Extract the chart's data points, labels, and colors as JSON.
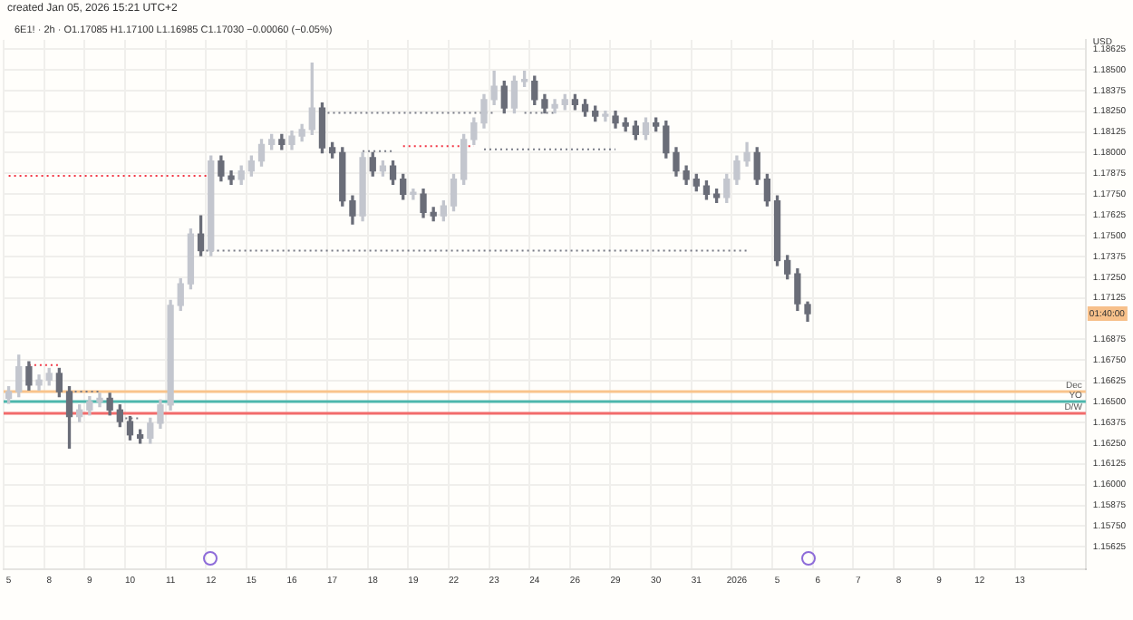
{
  "chart_data": {
    "type": "candlestick",
    "title": "created Jan 05, 2026 15:21 UTC+2",
    "subtitle": "6E1! · 2h · O1.17085 H1.17100 L1.16985 C1.17030 −0.00060 (−0.05%)",
    "ylabel": "USD",
    "categories": [
      "5",
      null,
      null,
      null,
      "8",
      null,
      null,
      null,
      "9",
      null,
      null,
      null,
      "10",
      null,
      null,
      null,
      "11",
      null,
      null,
      null,
      "12",
      null,
      null,
      null,
      "15",
      null,
      null,
      null,
      "16",
      null,
      null,
      null,
      "17",
      null,
      null,
      null,
      "18",
      null,
      null,
      null,
      "19",
      null,
      null,
      null,
      "22",
      null,
      null,
      null,
      "23",
      null,
      null,
      null,
      "24",
      null,
      null,
      null,
      "26",
      null,
      null,
      null,
      "29",
      null,
      null,
      null,
      "30",
      null,
      null,
      null,
      "31",
      null,
      null,
      null,
      "2026",
      null,
      null,
      null,
      "5",
      null,
      null,
      null,
      "6",
      null,
      null,
      null,
      "7",
      null,
      null,
      null,
      "8",
      null,
      null,
      null,
      "9",
      null,
      null,
      null,
      "12",
      null,
      null,
      null,
      "13",
      null,
      null,
      null,
      null,
      null,
      null
    ],
    "colors": [
      "#c3c6ce",
      "#c3c6ce",
      "#6a6d78",
      "#c3c6ce",
      "#c3c6ce",
      "#6a6d78",
      "#6a6d78",
      "#c3c6ce",
      "#c3c6ce",
      "#c3c6ce",
      "#6a6d78",
      "#6a6d78",
      "#6a6d78",
      "#6a6d78",
      "#c3c6ce",
      "#c3c6ce",
      "#c3c6ce",
      "#c3c6ce",
      "#c3c6ce",
      "#6a6d78",
      "#c3c6ce",
      "#6a6d78",
      "#6a6d78",
      "#c3c6ce",
      "#c3c6ce",
      "#c3c6ce",
      "#c3c6ce",
      "#6a6d78",
      "#c3c6ce",
      "#c3c6ce",
      "#c3c6ce",
      "#6a6d78",
      "#6a6d78",
      "#6a6d78",
      "#6a6d78",
      "#c3c6ce",
      "#6a6d78",
      "#c3c6ce",
      "#6a6d78",
      "#6a6d78",
      "#c3c6ce",
      "#6a6d78",
      "#6a6d78",
      "#c3c6ce",
      "#c3c6ce",
      "#c3c6ce",
      "#c3c6ce",
      "#c3c6ce",
      "#c3c6ce",
      "#6a6d78",
      "#c3c6ce",
      "#c3c6ce",
      "#6a6d78",
      "#6a6d78",
      "#c3c6ce",
      "#c3c6ce",
      "#6a6d78",
      "#6a6d78",
      "#6a6d78",
      "#c3c6ce",
      "#6a6d78",
      "#6a6d78",
      "#6a6d78",
      "#c3c6ce",
      "#6a6d78",
      "#6a6d78",
      "#6a6d78",
      "#6a6d78",
      "#6a6d78",
      "#6a6d78",
      "#6a6d78",
      "#c3c6ce",
      "#c3c6ce",
      "#c3c6ce",
      "#6a6d78",
      "#6a6d78",
      "#6a6d78",
      "#6a6d78",
      "#6a6d78",
      "#6a6d78",
      null,
      null,
      null,
      null,
      null,
      null,
      null,
      null,
      null,
      null,
      null,
      null,
      null,
      null,
      null,
      null,
      null,
      null,
      null,
      null,
      null,
      null,
      null,
      null,
      null,
      null,
      null
    ],
    "ohlc": [
      [
        1.1652,
        1.1659,
        1.1649,
        1.1656
      ],
      [
        1.1656,
        1.1678,
        1.1653,
        1.1671
      ],
      [
        1.1671,
        1.1674,
        1.1657,
        1.166
      ],
      [
        1.166,
        1.1666,
        1.1657,
        1.1663
      ],
      [
        1.1663,
        1.167,
        1.166,
        1.1667
      ],
      [
        1.1667,
        1.167,
        1.1653,
        1.1656
      ],
      [
        1.1656,
        1.1659,
        1.1622,
        1.1641
      ],
      [
        1.1641,
        1.1648,
        1.1638,
        1.1645
      ],
      [
        1.1645,
        1.1653,
        1.1642,
        1.165
      ],
      [
        1.165,
        1.1655,
        1.1647,
        1.1652
      ],
      [
        1.1652,
        1.1655,
        1.1642,
        1.1645
      ],
      [
        1.1645,
        1.1648,
        1.1635,
        1.1638
      ],
      [
        1.1638,
        1.1641,
        1.1627,
        1.163
      ],
      [
        1.163,
        1.1633,
        1.1625,
        1.1628
      ],
      [
        1.1628,
        1.164,
        1.1625,
        1.1637
      ],
      [
        1.1637,
        1.1651,
        1.1634,
        1.1648
      ],
      [
        1.1648,
        1.1711,
        1.1645,
        1.1708
      ],
      [
        1.1708,
        1.1724,
        1.1705,
        1.1721
      ],
      [
        1.1721,
        1.1754,
        1.1718,
        1.1751
      ],
      [
        1.1751,
        1.1762,
        1.1738,
        1.1741
      ],
      [
        1.1741,
        1.1798,
        1.1738,
        1.1795
      ],
      [
        1.1795,
        1.1798,
        1.1783,
        1.1786
      ],
      [
        1.1786,
        1.1789,
        1.1781,
        1.1784
      ],
      [
        1.1784,
        1.1792,
        1.1781,
        1.1789
      ],
      [
        1.1789,
        1.1798,
        1.1786,
        1.1795
      ],
      [
        1.1795,
        1.1808,
        1.1792,
        1.1805
      ],
      [
        1.1805,
        1.1811,
        1.1802,
        1.1808
      ],
      [
        1.1808,
        1.1811,
        1.1802,
        1.1805
      ],
      [
        1.1805,
        1.1813,
        1.1802,
        1.181
      ],
      [
        1.181,
        1.1817,
        1.1807,
        1.1814
      ],
      [
        1.1814,
        1.1854,
        1.1811,
        1.1827
      ],
      [
        1.1827,
        1.183,
        1.18,
        1.1803
      ],
      [
        1.1803,
        1.1806,
        1.1797,
        1.18
      ],
      [
        1.18,
        1.1803,
        1.1768,
        1.1771
      ],
      [
        1.1771,
        1.1774,
        1.1757,
        1.1762
      ],
      [
        1.1762,
        1.18,
        1.1759,
        1.1797
      ],
      [
        1.1797,
        1.18,
        1.1786,
        1.1789
      ],
      [
        1.1789,
        1.1795,
        1.1786,
        1.1792
      ],
      [
        1.1792,
        1.1795,
        1.1781,
        1.1784
      ],
      [
        1.1784,
        1.1787,
        1.1772,
        1.1775
      ],
      [
        1.1775,
        1.1778,
        1.1772,
        1.1775
      ],
      [
        1.1775,
        1.1778,
        1.1761,
        1.1764
      ],
      [
        1.1764,
        1.1767,
        1.1759,
        1.1762
      ],
      [
        1.1762,
        1.1771,
        1.1759,
        1.1768
      ],
      [
        1.1768,
        1.1787,
        1.1765,
        1.1784
      ],
      [
        1.1784,
        1.1811,
        1.1781,
        1.1808
      ],
      [
        1.1808,
        1.1821,
        1.1805,
        1.1818
      ],
      [
        1.1818,
        1.1835,
        1.1815,
        1.1832
      ],
      [
        1.1832,
        1.1849,
        1.1829,
        1.184
      ],
      [
        1.184,
        1.1843,
        1.1824,
        1.1827
      ],
      [
        1.1827,
        1.1846,
        1.1824,
        1.1843
      ],
      [
        1.1843,
        1.1849,
        1.184,
        1.1843
      ],
      [
        1.1843,
        1.1846,
        1.1829,
        1.1832
      ],
      [
        1.1832,
        1.1835,
        1.1824,
        1.1827
      ],
      [
        1.1827,
        1.1832,
        1.1824,
        1.1829
      ],
      [
        1.1829,
        1.1835,
        1.1826,
        1.1832
      ],
      [
        1.1832,
        1.1835,
        1.1826,
        1.1829
      ],
      [
        1.1829,
        1.1832,
        1.1822,
        1.1825
      ],
      [
        1.1825,
        1.1828,
        1.1819,
        1.1822
      ],
      [
        1.1822,
        1.1825,
        1.1819,
        1.1822
      ],
      [
        1.1822,
        1.1825,
        1.1815,
        1.1818
      ],
      [
        1.1818,
        1.1821,
        1.1813,
        1.1816
      ],
      [
        1.1816,
        1.1819,
        1.1808,
        1.1811
      ],
      [
        1.1811,
        1.1821,
        1.1808,
        1.1818
      ],
      [
        1.1818,
        1.1821,
        1.1813,
        1.1816
      ],
      [
        1.1816,
        1.1819,
        1.1797,
        1.18
      ],
      [
        1.18,
        1.1803,
        1.1786,
        1.1789
      ],
      [
        1.1789,
        1.1792,
        1.1781,
        1.1784
      ],
      [
        1.1784,
        1.1787,
        1.1777,
        1.178
      ],
      [
        1.178,
        1.1783,
        1.1772,
        1.1775
      ],
      [
        1.1775,
        1.1778,
        1.177,
        1.1773
      ],
      [
        1.1773,
        1.1787,
        1.177,
        1.1784
      ],
      [
        1.1784,
        1.1798,
        1.1781,
        1.1795
      ],
      [
        1.1795,
        1.1806,
        1.1792,
        1.18
      ],
      [
        1.18,
        1.1803,
        1.1781,
        1.1784
      ],
      [
        1.1784,
        1.1787,
        1.1768,
        1.1771
      ],
      [
        1.1771,
        1.1774,
        1.1732,
        1.1735
      ],
      [
        1.1735,
        1.1738,
        1.1724,
        1.1727
      ],
      [
        1.1727,
        1.173,
        1.1705,
        1.1709
      ],
      [
        1.17085,
        1.171,
        1.16985,
        1.1703
      ],
      null,
      null,
      null,
      null,
      null,
      null,
      null,
      null,
      null,
      null,
      null,
      null,
      null,
      null,
      null,
      null,
      null,
      null,
      null,
      null,
      null,
      null,
      null,
      null,
      null,
      null,
      null
    ],
    "series": [
      {
        "type": "line",
        "line_style": "dotted",
        "color": "#f23645",
        "values": [
          1.1786,
          null,
          null,
          null,
          null,
          null,
          null,
          null,
          null,
          null,
          null,
          null,
          null,
          null,
          null,
          null,
          null,
          null,
          null,
          null,
          1.1786,
          null,
          null,
          null,
          null,
          null,
          null,
          null,
          null,
          null,
          null,
          null,
          null,
          null,
          null,
          null,
          null,
          null,
          null,
          null,
          null,
          null,
          null,
          null,
          null,
          null,
          null,
          null,
          null,
          null,
          null,
          null,
          null,
          null,
          null,
          null,
          null,
          null,
          null,
          null,
          null,
          null,
          null,
          null,
          null,
          null,
          null,
          null,
          null,
          null,
          null,
          null,
          null,
          null,
          null,
          null,
          null,
          null,
          null,
          null,
          null,
          null,
          null,
          null,
          null,
          null,
          null,
          null,
          null,
          null,
          null,
          null,
          null,
          null,
          null,
          null,
          null,
          null,
          null,
          null,
          null,
          null,
          null,
          null,
          null,
          null,
          null
        ]
      },
      {
        "type": "line",
        "line_style": "dotted",
        "color": "#f23645",
        "values": [
          null,
          null,
          1.1672,
          null,
          null,
          1.1672,
          null,
          null,
          null,
          null,
          null,
          null,
          null,
          null,
          null,
          null,
          null,
          null,
          null,
          null,
          null,
          null,
          null,
          null,
          null,
          null,
          null,
          null,
          null,
          null,
          null,
          null,
          null,
          null,
          null,
          null,
          null,
          null,
          null,
          null,
          null,
          null,
          null,
          null,
          null,
          null,
          null,
          null,
          null,
          null,
          null,
          null,
          null,
          null,
          null,
          null,
          null,
          null,
          null,
          null,
          null,
          null,
          null,
          null,
          null,
          null,
          null,
          null,
          null,
          null,
          null,
          null,
          null,
          null,
          null,
          null,
          null,
          null,
          null,
          null,
          null,
          null,
          null,
          null,
          null,
          null,
          null,
          null,
          null,
          null,
          null,
          null,
          null,
          null,
          null,
          null,
          null,
          null,
          null,
          null,
          null,
          null,
          null,
          null,
          null,
          null,
          null
        ]
      },
      {
        "type": "line",
        "line_style": "dotted",
        "color": "#787b86",
        "values": [
          null,
          null,
          null,
          null,
          null,
          null,
          1.1656,
          null,
          null,
          1.1656,
          null,
          null,
          null,
          null,
          null,
          null,
          null,
          null,
          null,
          null,
          null,
          null,
          null,
          null,
          null,
          null,
          null,
          null,
          null,
          null,
          null,
          null,
          null,
          null,
          null,
          null,
          null,
          null,
          null,
          null,
          null,
          null,
          null,
          null,
          null,
          null,
          null,
          null,
          null,
          null,
          null,
          null,
          null,
          null,
          null,
          null,
          null,
          null,
          null,
          null,
          null,
          null,
          null,
          null,
          null,
          null,
          null,
          null,
          null,
          null,
          null,
          null,
          null,
          null,
          null,
          null,
          null,
          null,
          null,
          null,
          null,
          null,
          null,
          null,
          null,
          null,
          null,
          null,
          null,
          null,
          null,
          null,
          null,
          null,
          null,
          null,
          null,
          null,
          null,
          null,
          null,
          null,
          null,
          null,
          null,
          null,
          null
        ]
      },
      {
        "type": "line",
        "line_style": "dotted",
        "color": "#787b86",
        "values": [
          null,
          null,
          null,
          null,
          null,
          null,
          null,
          null,
          null,
          null,
          null,
          1.164,
          null,
          1.164,
          null,
          null,
          null,
          null,
          null,
          null,
          null,
          null,
          null,
          null,
          null,
          null,
          null,
          null,
          null,
          null,
          null,
          null,
          null,
          null,
          null,
          null,
          null,
          null,
          null,
          null,
          null,
          null,
          null,
          null,
          null,
          null,
          null,
          null,
          null,
          null,
          null,
          null,
          null,
          null,
          null,
          null,
          null,
          null,
          null,
          null,
          null,
          null,
          null,
          null,
          null,
          null,
          null,
          null,
          null,
          null,
          null,
          null,
          null,
          null,
          null,
          null,
          null,
          null,
          null,
          null,
          null,
          null,
          null,
          null,
          null,
          null,
          null,
          null,
          null,
          null,
          null,
          null,
          null,
          null,
          null,
          null,
          null,
          null,
          null,
          null,
          null,
          null,
          null,
          null,
          null,
          null,
          null
        ]
      },
      {
        "type": "line",
        "line_style": "dotted",
        "color": "#787b86",
        "values": [
          null,
          null,
          null,
          null,
          null,
          null,
          null,
          null,
          null,
          null,
          null,
          null,
          null,
          null,
          null,
          null,
          null,
          null,
          null,
          1.1741,
          null,
          null,
          null,
          null,
          null,
          null,
          null,
          null,
          null,
          null,
          null,
          null,
          null,
          null,
          null,
          null,
          null,
          null,
          null,
          null,
          null,
          null,
          null,
          null,
          null,
          null,
          null,
          null,
          null,
          null,
          null,
          null,
          null,
          null,
          null,
          null,
          null,
          null,
          null,
          null,
          null,
          null,
          null,
          null,
          null,
          null,
          null,
          null,
          null,
          null,
          null,
          null,
          null,
          1.1741,
          null,
          null,
          null,
          null,
          null,
          null,
          null,
          null,
          null,
          null,
          null,
          null,
          null,
          null,
          null,
          null,
          null,
          null,
          null,
          null,
          null,
          null,
          null,
          null,
          null,
          null,
          null,
          null,
          null,
          null,
          null,
          null,
          null
        ]
      },
      {
        "type": "line",
        "line_style": "dotted",
        "color": "#787b86",
        "values": [
          null,
          null,
          null,
          null,
          null,
          null,
          null,
          null,
          null,
          null,
          null,
          null,
          null,
          null,
          null,
          null,
          null,
          null,
          null,
          null,
          null,
          null,
          null,
          null,
          null,
          null,
          null,
          null,
          null,
          null,
          null,
          1.1824,
          null,
          null,
          null,
          null,
          null,
          null,
          null,
          null,
          null,
          null,
          null,
          null,
          null,
          null,
          null,
          null,
          1.1824,
          null,
          null,
          null,
          null,
          null,
          null,
          null,
          null,
          null,
          null,
          null,
          null,
          null,
          null,
          null,
          null,
          null,
          null,
          null,
          null,
          null,
          null,
          null,
          null,
          null,
          null,
          null,
          null,
          null,
          null,
          null,
          null,
          null,
          null,
          null,
          null,
          null,
          null,
          null,
          null,
          null,
          null,
          null,
          null,
          null,
          null,
          null,
          null,
          null,
          null,
          null,
          null,
          null,
          null,
          null,
          null,
          null,
          null
        ]
      },
      {
        "type": "line",
        "line_style": "dotted",
        "color": "#787b86",
        "values": [
          null,
          null,
          null,
          null,
          null,
          null,
          null,
          null,
          null,
          null,
          null,
          null,
          null,
          null,
          null,
          null,
          null,
          null,
          null,
          null,
          null,
          null,
          null,
          null,
          null,
          null,
          null,
          null,
          null,
          null,
          null,
          null,
          null,
          null,
          null,
          1.1801,
          null,
          null,
          1.1801,
          null,
          null,
          null,
          null,
          null,
          null,
          null,
          null,
          null,
          null,
          null,
          null,
          null,
          null,
          null,
          null,
          null,
          null,
          null,
          null,
          null,
          null,
          null,
          null,
          null,
          null,
          null,
          null,
          null,
          null,
          null,
          null,
          null,
          null,
          null,
          null,
          null,
          null,
          null,
          null,
          null,
          null,
          null,
          null,
          null,
          null,
          null,
          null,
          null,
          null,
          null,
          null,
          null,
          null,
          null,
          null,
          null,
          null,
          null,
          null,
          null,
          null,
          null,
          null,
          null,
          null,
          null,
          null
        ]
      },
      {
        "type": "line",
        "line_style": "dotted",
        "color": "#f23645",
        "values": [
          null,
          null,
          null,
          null,
          null,
          null,
          null,
          null,
          null,
          null,
          null,
          null,
          null,
          null,
          null,
          null,
          null,
          null,
          null,
          null,
          null,
          null,
          null,
          null,
          null,
          null,
          null,
          null,
          null,
          null,
          null,
          null,
          null,
          null,
          null,
          null,
          null,
          null,
          null,
          1.1804,
          null,
          null,
          null,
          null,
          null,
          null,
          1.1804,
          null,
          null,
          null,
          null,
          null,
          null,
          null,
          null,
          null,
          null,
          null,
          null,
          null,
          null,
          null,
          null,
          null,
          null,
          null,
          null,
          null,
          null,
          null,
          null,
          null,
          null,
          null,
          null,
          null,
          null,
          null,
          null,
          null,
          null,
          null,
          null,
          null,
          null,
          null,
          null,
          null,
          null,
          null,
          null,
          null,
          null,
          null,
          null,
          null,
          null,
          null,
          null,
          null,
          null,
          null,
          null,
          null,
          null,
          null,
          null
        ]
      },
      {
        "type": "line",
        "line_style": "dotted",
        "color": "#787b86",
        "values": [
          null,
          null,
          null,
          null,
          null,
          null,
          null,
          null,
          null,
          null,
          null,
          null,
          null,
          null,
          null,
          null,
          null,
          null,
          null,
          null,
          null,
          null,
          null,
          null,
          null,
          null,
          null,
          null,
          null,
          null,
          null,
          null,
          null,
          null,
          null,
          null,
          null,
          null,
          null,
          null,
          null,
          null,
          null,
          null,
          null,
          null,
          null,
          1.1802,
          null,
          null,
          null,
          null,
          null,
          null,
          null,
          null,
          null,
          null,
          null,
          null,
          1.1802,
          null,
          null,
          null,
          null,
          null,
          null,
          null,
          null,
          null,
          null,
          null,
          null,
          null,
          null,
          null,
          null,
          null,
          null,
          null,
          null,
          null,
          null,
          null,
          null,
          null,
          null,
          null,
          null,
          null,
          null,
          null,
          null,
          null,
          null,
          null,
          null,
          null,
          null,
          null,
          null,
          null,
          null,
          null,
          null,
          null,
          null
        ]
      },
      {
        "type": "line",
        "line_style": "dotted",
        "color": "#787b86",
        "values": [
          null,
          null,
          null,
          null,
          null,
          null,
          null,
          null,
          null,
          null,
          null,
          null,
          null,
          null,
          null,
          null,
          null,
          null,
          null,
          null,
          null,
          null,
          null,
          null,
          null,
          null,
          null,
          null,
          null,
          null,
          null,
          null,
          null,
          null,
          null,
          null,
          null,
          null,
          null,
          null,
          null,
          null,
          null,
          null,
          null,
          null,
          null,
          null,
          null,
          null,
          null,
          1.1824,
          null,
          null,
          1.1824,
          null,
          null,
          null,
          null,
          null,
          null,
          null,
          null,
          null,
          null,
          null,
          null,
          null,
          null,
          null,
          null,
          null,
          null,
          null,
          null,
          null,
          null,
          null,
          null,
          null,
          null,
          null,
          null,
          null,
          null,
          null,
          null,
          null,
          null,
          null,
          null,
          null,
          null,
          null,
          null,
          null,
          null,
          null,
          null,
          null,
          null,
          null,
          null,
          null,
          null,
          null,
          null
        ]
      }
    ],
    "ylim": [
      1.1549,
      1.1868
    ],
    "yticks": [
      {
        "value": 1.15625,
        "label": "1.15625"
      },
      {
        "value": 1.1575,
        "label": "1.15750"
      },
      {
        "value": 1.15875,
        "label": "1.15875"
      },
      {
        "value": 1.16,
        "label": "1.16000"
      },
      {
        "value": 1.16125,
        "label": "1.16125"
      },
      {
        "value": 1.1625,
        "label": "1.16250"
      },
      {
        "value": 1.16375,
        "label": "1.16375"
      },
      {
        "value": 1.165,
        "label": "1.16500"
      },
      {
        "value": 1.16625,
        "label": "1.16625"
      },
      {
        "value": 1.1675,
        "label": "1.16750"
      },
      {
        "value": 1.16875,
        "label": "1.16875"
      },
      {
        "value": 1.17125,
        "label": "1.17125"
      },
      {
        "value": 1.1725,
        "label": "1.17250"
      },
      {
        "value": 1.17375,
        "label": "1.17375"
      },
      {
        "value": 1.175,
        "label": "1.17500"
      },
      {
        "value": 1.17625,
        "label": "1.17625"
      },
      {
        "value": 1.1775,
        "label": "1.17750"
      },
      {
        "value": 1.17875,
        "label": "1.17875"
      },
      {
        "value": 1.18,
        "label": "1.18000"
      },
      {
        "value": 1.18125,
        "label": "1.18125"
      },
      {
        "value": 1.1825,
        "label": "1.18250"
      },
      {
        "value": 1.18375,
        "label": "1.18375"
      },
      {
        "value": 1.185,
        "label": "1.18500"
      },
      {
        "value": 1.18625,
        "label": "1.18625"
      }
    ],
    "grid": true,
    "ref_lines": [
      {
        "axis": "y",
        "value": 1.1656,
        "label": "Dec",
        "color": "#f9c48b"
      },
      {
        "axis": "y",
        "value": 1.165,
        "label": "YO",
        "color": "#4db6ac"
      },
      {
        "axis": "y",
        "value": 1.1643,
        "label": "D/W",
        "color": "#f26b6b"
      }
    ],
    "annotations": [
      {
        "text": "01:40:00",
        "y": 1.1703
      }
    ]
  }
}
